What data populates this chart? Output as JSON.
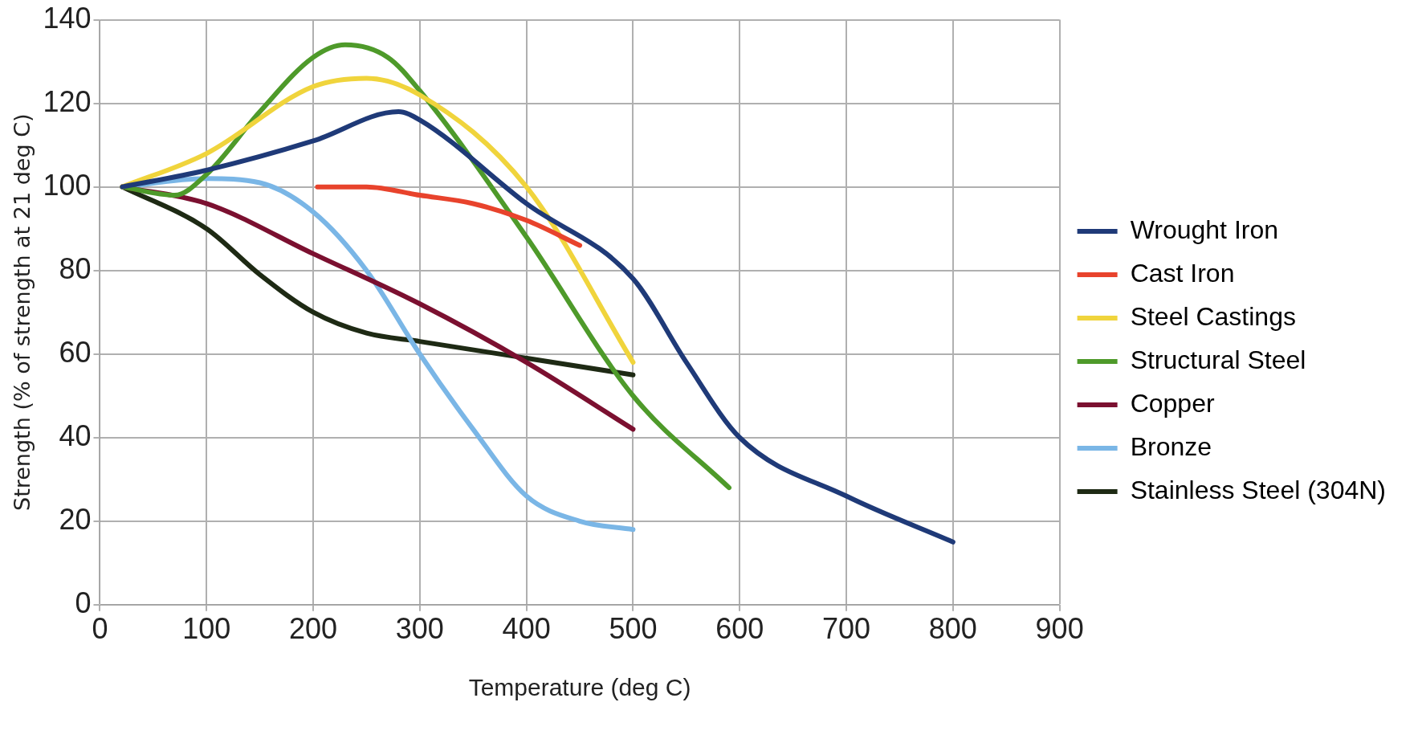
{
  "chart_data": {
    "type": "line",
    "xlabel": "Temperature (deg C)",
    "ylabel": "Strength (% of strength at 21 deg C)",
    "xlim": [
      0,
      900
    ],
    "xticks": [
      0,
      100,
      200,
      300,
      400,
      500,
      600,
      700,
      800,
      900
    ],
    "ylim": [
      0,
      140
    ],
    "yticks": [
      0,
      20,
      40,
      60,
      80,
      100,
      120,
      140
    ],
    "grid": true,
    "legend": "right",
    "marker": "none",
    "line_style": "solid",
    "series": [
      {
        "name": "Wrought Iron",
        "color": "#1f3a78",
        "x": [
          21,
          100,
          200,
          280,
          300,
          400,
          500,
          550,
          600,
          700,
          800
        ],
        "values": [
          100,
          104,
          111,
          118,
          116,
          96,
          78,
          58,
          40,
          26,
          15
        ]
      },
      {
        "name": "Cast Iron",
        "color": "#e8432c",
        "x": [
          204,
          250,
          300,
          350,
          400,
          450
        ],
        "values": [
          100,
          100,
          98,
          96,
          92,
          86
        ]
      },
      {
        "name": "Steel Castings",
        "color": "#f0d43c",
        "x": [
          21,
          100,
          200,
          250,
          300,
          400,
          500
        ],
        "values": [
          100,
          108,
          124,
          126,
          122,
          100,
          58
        ]
      },
      {
        "name": "Structural Steel",
        "color": "#4e9a2a",
        "x": [
          21,
          70,
          100,
          150,
          200,
          230,
          270,
          300,
          400,
          500,
          590
        ],
        "values": [
          100,
          98,
          103,
          118,
          131,
          134,
          131,
          123,
          88,
          50,
          28
        ]
      },
      {
        "name": "Copper",
        "color": "#7b1030",
        "x": [
          21,
          100,
          200,
          300,
          400,
          500
        ],
        "values": [
          100,
          96,
          84,
          72,
          58,
          42
        ]
      },
      {
        "name": "Bronze",
        "color": "#7ab6e6",
        "x": [
          21,
          100,
          150,
          200,
          250,
          300,
          350,
          400,
          450,
          500
        ],
        "values": [
          100,
          102,
          101,
          94,
          80,
          60,
          42,
          26,
          20,
          18
        ]
      },
      {
        "name": "Stainless Steel (304N)",
        "color": "#1e2a14",
        "x": [
          21,
          100,
          150,
          200,
          250,
          300,
          400,
          500
        ],
        "values": [
          100,
          90,
          79,
          70,
          65,
          63,
          59,
          55
        ]
      }
    ]
  }
}
